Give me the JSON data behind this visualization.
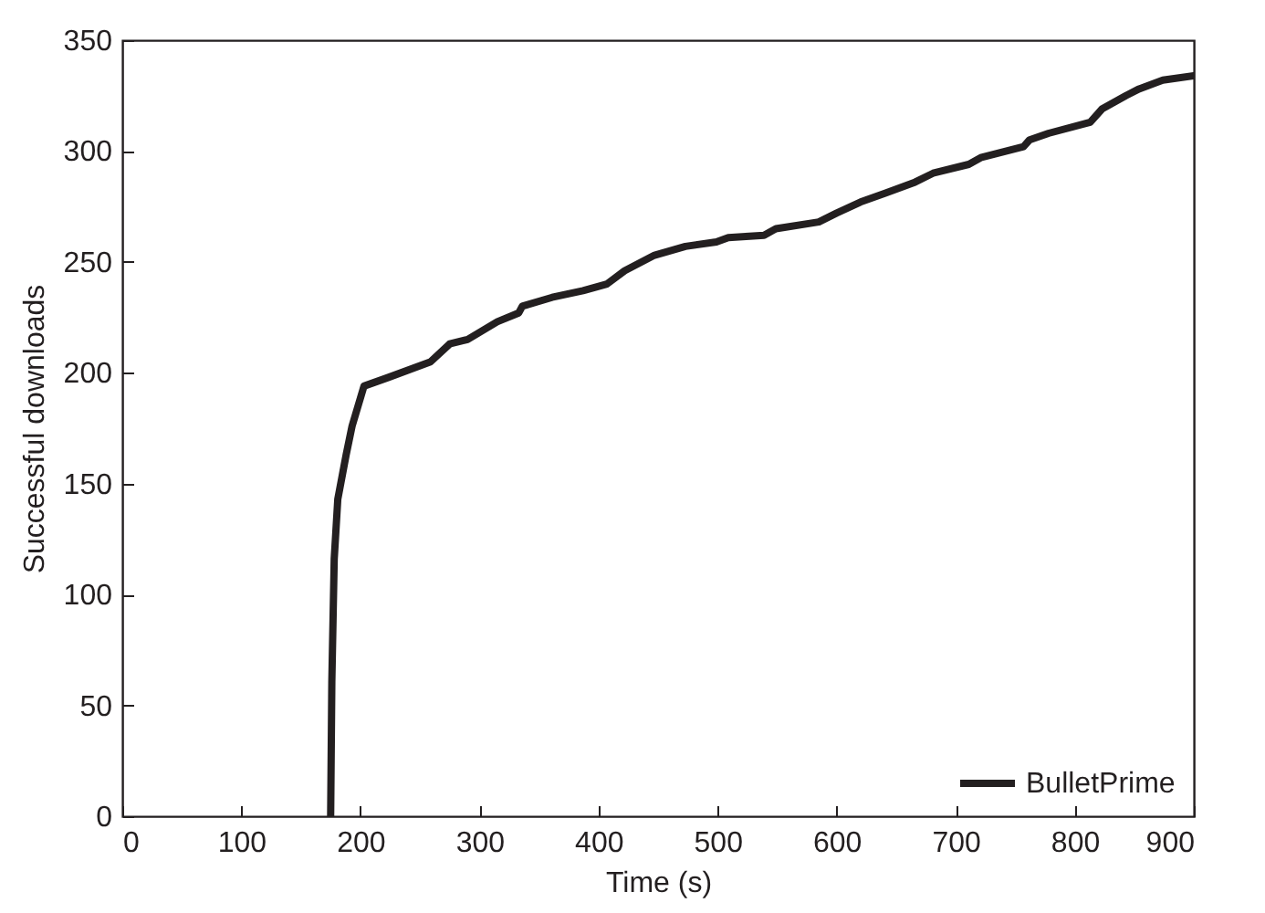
{
  "chart_data": {
    "type": "line",
    "xlabel": "Time (s)",
    "ylabel": "Successful downloads",
    "xlim": [
      0,
      900
    ],
    "xticks": [
      0,
      100,
      200,
      300,
      400,
      500,
      600,
      700,
      800,
      900
    ],
    "ylim": [
      0,
      350
    ],
    "yticks": [
      0,
      50,
      100,
      150,
      200,
      250,
      300,
      350
    ],
    "legend": "bottom right",
    "grid": false,
    "marker": "none",
    "line_style": "solid",
    "series": [
      {
        "name": "BulletPrime",
        "color": "#231f20",
        "x": [
          175,
          176,
          178,
          181,
          188,
          193,
          203,
          224,
          259,
          275,
          290,
          315,
          333,
          336,
          361,
          387,
          407,
          422,
          447,
          473,
          499,
          509,
          539,
          549,
          585,
          600,
          620,
          641,
          666,
          681,
          711,
          721,
          757,
          762,
          778,
          813,
          823,
          843,
          854,
          874,
          900
        ],
        "values": [
          0,
          61,
          116,
          143,
          163,
          176,
          194,
          198,
          205,
          213,
          215,
          223,
          227,
          230,
          234,
          237,
          240,
          246,
          253,
          257,
          259,
          261,
          262,
          265,
          268,
          272,
          277,
          281,
          286,
          290,
          294,
          297,
          302,
          305,
          308,
          313,
          319,
          325,
          328,
          332,
          334
        ]
      }
    ]
  }
}
